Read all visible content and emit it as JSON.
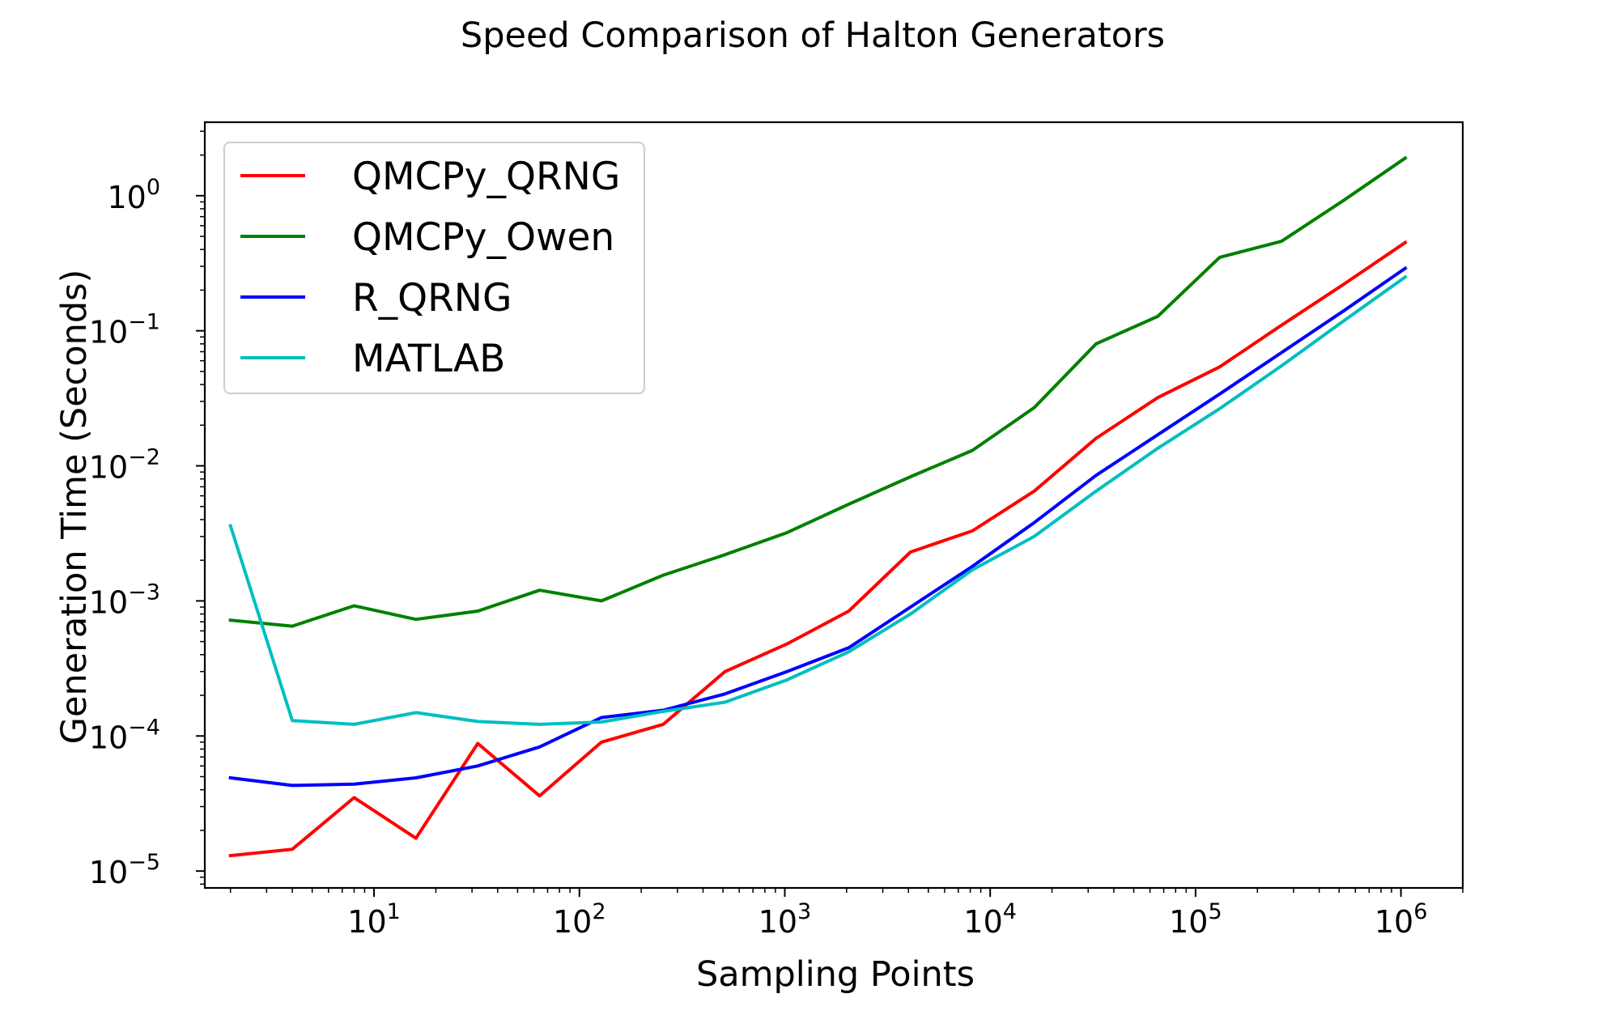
{
  "chart_data": {
    "type": "line",
    "title": "Speed Comparison of Halton Generators",
    "xlabel": "Sampling Points",
    "ylabel": "Generation Time (Seconds)",
    "x_scale": "log",
    "y_scale": "log",
    "xlim": [
      1.5,
      2000000
    ],
    "ylim": [
      7.5e-06,
      3.5
    ],
    "grid": false,
    "legend_position": "upper-left",
    "x_ticks": [
      {
        "value": 10,
        "base": "10",
        "exp": "1"
      },
      {
        "value": 100,
        "base": "10",
        "exp": "2"
      },
      {
        "value": 1000,
        "base": "10",
        "exp": "3"
      },
      {
        "value": 10000,
        "base": "10",
        "exp": "4"
      },
      {
        "value": 100000,
        "base": "10",
        "exp": "5"
      },
      {
        "value": 1000000,
        "base": "10",
        "exp": "6"
      }
    ],
    "y_ticks": [
      {
        "value": 1e-05,
        "base": "10",
        "exp": "−5"
      },
      {
        "value": 0.0001,
        "base": "10",
        "exp": "−4"
      },
      {
        "value": 0.001,
        "base": "10",
        "exp": "−3"
      },
      {
        "value": 0.01,
        "base": "10",
        "exp": "−2"
      },
      {
        "value": 0.1,
        "base": "10",
        "exp": "−1"
      },
      {
        "value": 1,
        "base": "10",
        "exp": "0"
      }
    ],
    "x": [
      2,
      4,
      8,
      16,
      32,
      64,
      128,
      256,
      512,
      1024,
      2048,
      4096,
      8192,
      16384,
      32768,
      65536,
      131072,
      262144,
      524288,
      1048576
    ],
    "series": [
      {
        "name": "QMCPy_QRNG",
        "color": "#ff0000",
        "values": [
          1.3e-05,
          1.45e-05,
          3.5e-05,
          1.75e-05,
          8.8e-05,
          3.6e-05,
          9e-05,
          0.000122,
          0.0003,
          0.00048,
          0.00084,
          0.0023,
          0.0033,
          0.0065,
          0.016,
          0.032,
          0.054,
          0.11,
          0.22,
          0.45
        ]
      },
      {
        "name": "QMCPy_Owen",
        "color": "#008000",
        "values": [
          0.00072,
          0.00065,
          0.00092,
          0.00073,
          0.00084,
          0.0012,
          0.001,
          0.00155,
          0.0022,
          0.0032,
          0.0052,
          0.0083,
          0.013,
          0.027,
          0.08,
          0.128,
          0.35,
          0.46,
          0.92,
          1.9
        ]
      },
      {
        "name": "R_QRNG",
        "color": "#0000ff",
        "values": [
          4.9e-05,
          4.3e-05,
          4.4e-05,
          4.9e-05,
          6e-05,
          8.3e-05,
          0.000137,
          0.000155,
          0.000205,
          0.0003,
          0.00045,
          0.0009,
          0.0018,
          0.0038,
          0.0085,
          0.017,
          0.034,
          0.069,
          0.14,
          0.29
        ]
      },
      {
        "name": "MATLAB",
        "color": "#00bfbf",
        "values": [
          0.0036,
          0.00013,
          0.000122,
          0.000149,
          0.000128,
          0.000122,
          0.000127,
          0.000152,
          0.000178,
          0.00026,
          0.00042,
          0.0008,
          0.0017,
          0.003,
          0.0065,
          0.0135,
          0.0265,
          0.055,
          0.118,
          0.25
        ]
      }
    ]
  }
}
